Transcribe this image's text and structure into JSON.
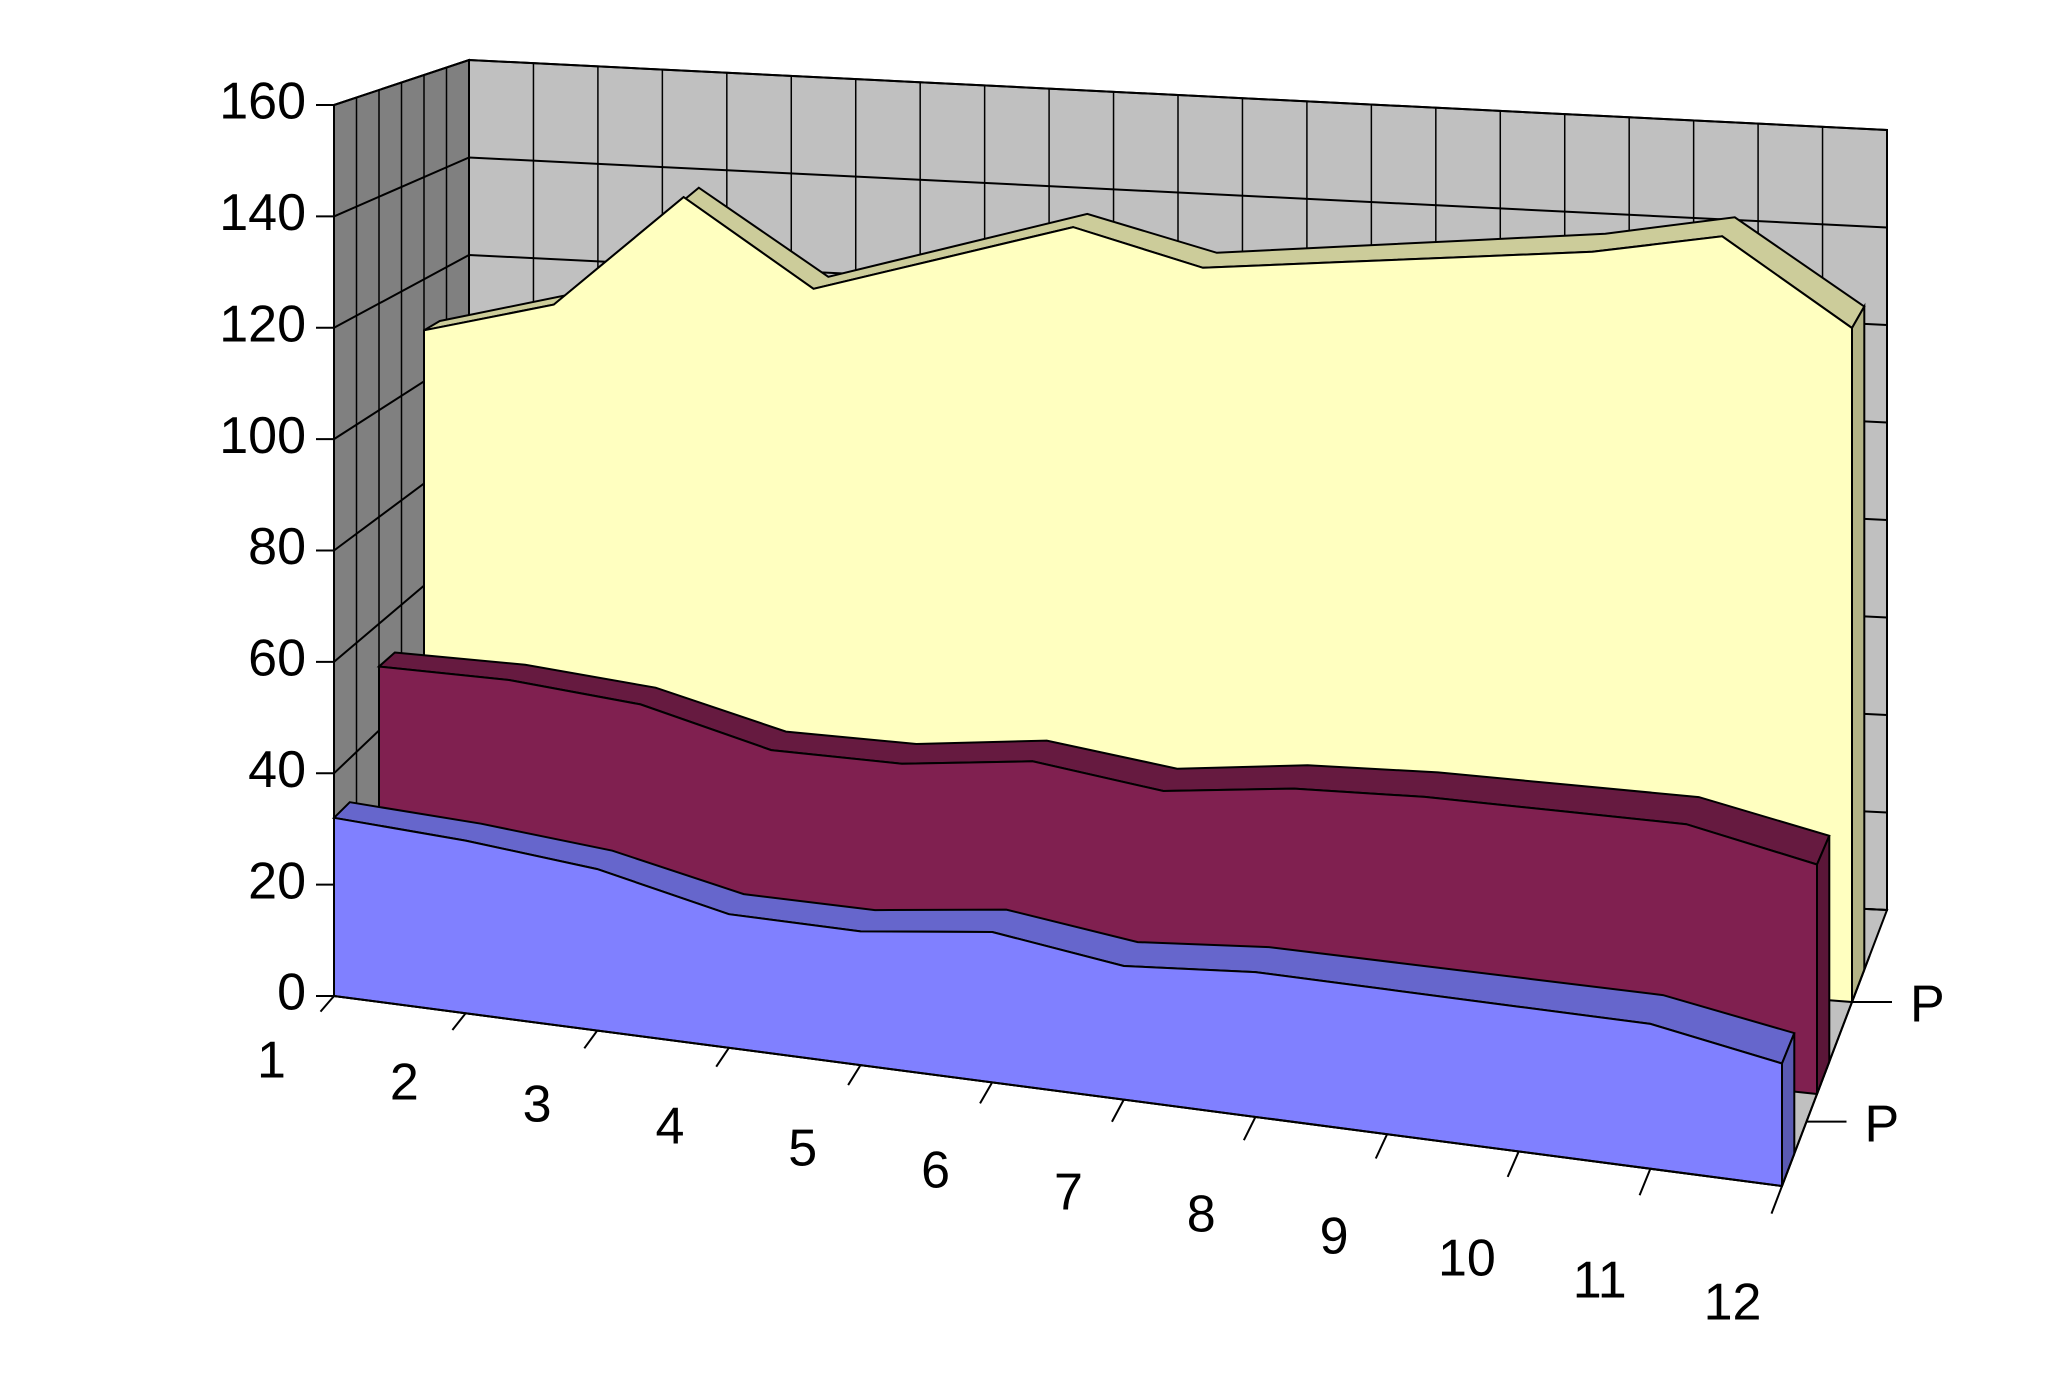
{
  "chart_data": {
    "type": "area3d",
    "categories": [
      "1",
      "2",
      "3",
      "4",
      "5",
      "6",
      "7",
      "8",
      "9",
      "10",
      "11",
      "12"
    ],
    "series_axis_labels": [
      "P",
      "P"
    ],
    "series": [
      {
        "color": "#8080ff",
        "values": [
          32,
          31,
          29,
          24,
          24,
          27,
          24,
          26,
          26,
          26,
          26,
          22
        ]
      },
      {
        "color": "#802050",
        "values": [
          52,
          52,
          50,
          44,
          44,
          47,
          44,
          47,
          48,
          48,
          48,
          43
        ]
      },
      {
        "color": "#ffffc0",
        "values": [
          110,
          117,
          140,
          124,
          132,
          140,
          134,
          137,
          140,
          143,
          148,
          132
        ]
      }
    ],
    "ylim": [
      0,
      160
    ],
    "yticks": [
      0,
      20,
      40,
      60,
      80,
      100,
      120,
      140,
      160
    ],
    "grid": true
  }
}
